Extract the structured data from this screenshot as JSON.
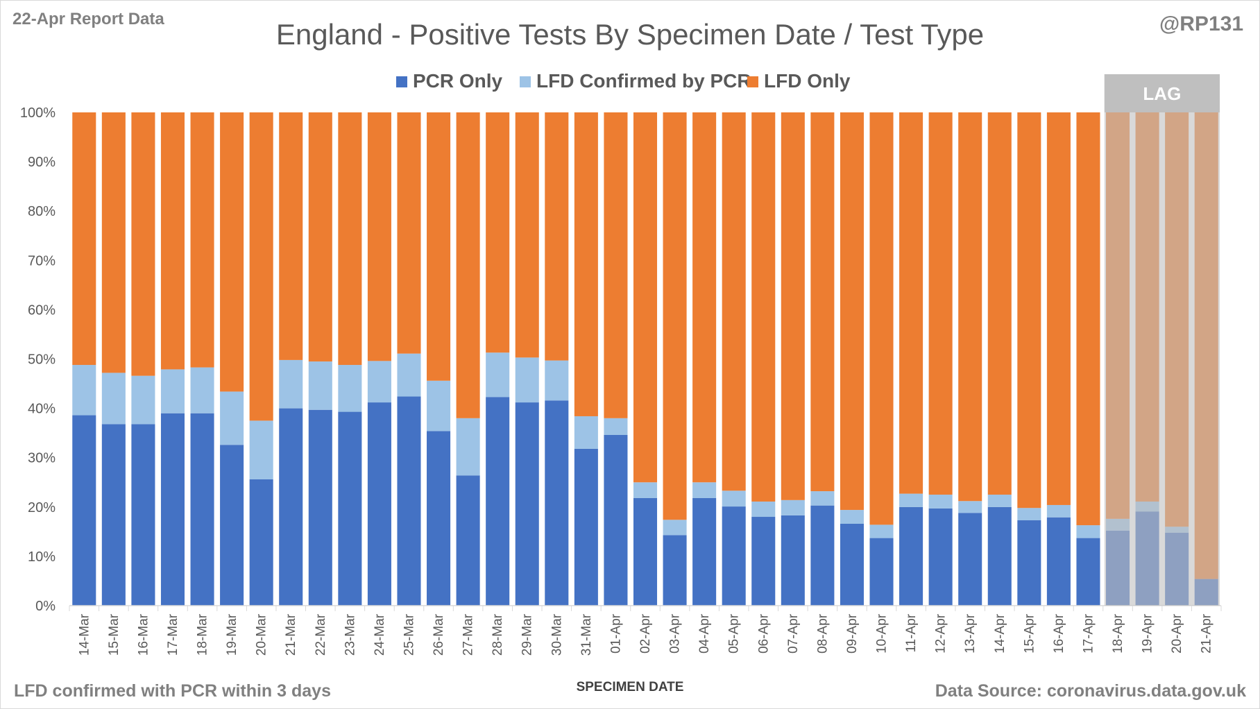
{
  "header": {
    "report_label": "22-Apr Report Data",
    "handle": "@RP131",
    "title": "England - Positive Tests By Specimen Date / Test Type"
  },
  "footer": {
    "note": "LFD confirmed with PCR within 3 days",
    "source": "Data Source: coronavirus.data.gov.uk"
  },
  "chart_data": {
    "type": "bar",
    "stacked": true,
    "normalized_percent": true,
    "xlabel": "SPECIMEN DATE",
    "ylabel": "",
    "ylim": [
      0,
      100
    ],
    "yticks": [
      "0%",
      "10%",
      "20%",
      "30%",
      "40%",
      "50%",
      "60%",
      "70%",
      "80%",
      "90%",
      "100%"
    ],
    "legend_position": "top-center",
    "grid": false,
    "categories": [
      "14-Mar",
      "15-Mar",
      "16-Mar",
      "17-Mar",
      "18-Mar",
      "19-Mar",
      "20-Mar",
      "21-Mar",
      "22-Mar",
      "23-Mar",
      "24-Mar",
      "25-Mar",
      "26-Mar",
      "27-Mar",
      "28-Mar",
      "29-Mar",
      "30-Mar",
      "31-Mar",
      "01-Apr",
      "02-Apr",
      "03-Apr",
      "04-Apr",
      "05-Apr",
      "06-Apr",
      "07-Apr",
      "08-Apr",
      "09-Apr",
      "10-Apr",
      "11-Apr",
      "12-Apr",
      "13-Apr",
      "14-Apr",
      "15-Apr",
      "16-Apr",
      "17-Apr",
      "18-Apr",
      "19-Apr",
      "20-Apr",
      "21-Apr"
    ],
    "series": [
      {
        "name": "PCR Only",
        "color": "#4472c4",
        "values": [
          38.6,
          36.8,
          36.8,
          39.0,
          39.0,
          32.6,
          25.6,
          40.0,
          39.7,
          39.3,
          41.2,
          42.4,
          35.4,
          26.4,
          42.3,
          41.2,
          41.6,
          31.8,
          34.6,
          21.8,
          14.3,
          21.8,
          20.1,
          18.0,
          18.3,
          20.3,
          16.6,
          13.7,
          20.0,
          19.7,
          18.8,
          20.0,
          17.3,
          17.9,
          13.7,
          15.2,
          19.1,
          14.8,
          5.4
        ]
      },
      {
        "name": "LFD Confirmed by PCR",
        "color": "#9dc3e6",
        "values": [
          10.2,
          10.4,
          9.8,
          8.9,
          9.3,
          10.8,
          11.9,
          9.8,
          9.8,
          9.5,
          8.4,
          8.7,
          10.2,
          11.6,
          9.0,
          9.1,
          8.1,
          6.6,
          3.4,
          3.2,
          3.1,
          3.2,
          3.2,
          3.1,
          3.1,
          2.9,
          2.8,
          2.7,
          2.7,
          2.8,
          2.4,
          2.5,
          2.5,
          2.5,
          2.6,
          2.4,
          2.0,
          1.2,
          0.0
        ]
      },
      {
        "name": "LFD Only",
        "color": "#ed7d31",
        "values": [
          51.2,
          52.8,
          53.4,
          52.1,
          51.7,
          56.6,
          62.5,
          50.2,
          50.5,
          51.2,
          50.4,
          48.9,
          54.4,
          62.0,
          48.7,
          49.7,
          50.3,
          61.6,
          62.0,
          75.0,
          82.6,
          75.0,
          76.7,
          78.9,
          78.6,
          76.8,
          80.6,
          83.6,
          77.3,
          77.5,
          78.8,
          77.5,
          80.2,
          79.6,
          83.7,
          82.4,
          78.9,
          84.0,
          94.6
        ]
      }
    ],
    "annotation": {
      "label": "LAG",
      "start_category": "18-Apr",
      "end_category": "21-Apr",
      "color": "#bfbfbf"
    }
  }
}
